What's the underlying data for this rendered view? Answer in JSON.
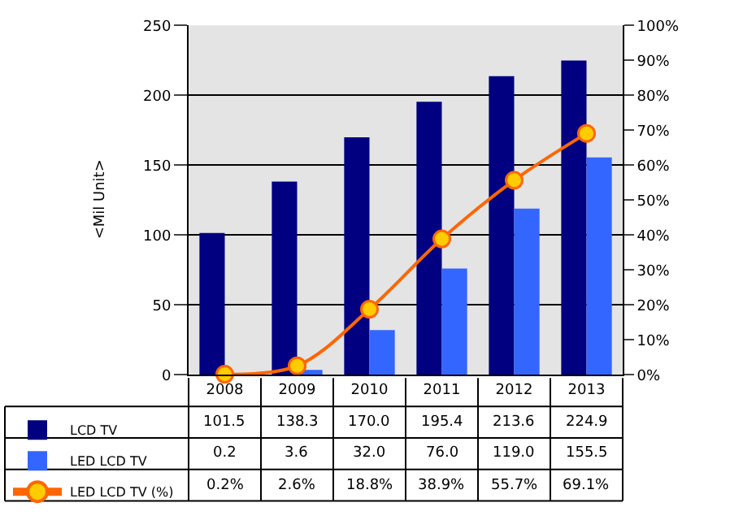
{
  "chart_data": {
    "type": "bar",
    "ylabel": "<Mil Unit>",
    "categories": [
      "2008",
      "2009",
      "2010",
      "2011",
      "2012",
      "2013"
    ],
    "series": [
      {
        "name": "LCD TV",
        "color": "#000080",
        "values": [
          101.5,
          138.3,
          170.0,
          195.4,
          213.6,
          224.9
        ],
        "value_labels": [
          "101.5",
          "138.3",
          "170.0",
          "195.4",
          "213.6",
          "224.9"
        ]
      },
      {
        "name": "LED LCD TV",
        "color": "#3366ff",
        "values": [
          0.2,
          3.6,
          32.0,
          76.0,
          119.0,
          155.5
        ],
        "value_labels": [
          "0.2",
          "3.6",
          "32.0",
          "76.0",
          "119.0",
          "155.5"
        ]
      },
      {
        "name": "LED LCD TV (%)",
        "type": "line",
        "axis": "y2",
        "color": "#ff6600",
        "marker": "circle",
        "values": [
          0.2,
          2.6,
          18.8,
          38.9,
          55.7,
          69.1
        ],
        "value_labels": [
          "0.2%",
          "2.6%",
          "18.8%",
          "38.9%",
          "55.7%",
          "69.1%"
        ]
      }
    ],
    "ylim": [
      0,
      250
    ],
    "yticks": [
      0,
      50,
      100,
      150,
      200,
      250
    ],
    "y2lim": [
      0,
      100
    ],
    "y2ticks": [
      {
        "value": 0,
        "label": "0%"
      },
      {
        "value": 10,
        "label": "10%"
      },
      {
        "value": 20,
        "label": "20%"
      },
      {
        "value": 30,
        "label": "30%"
      },
      {
        "value": 40,
        "label": "40%"
      },
      {
        "value": 50,
        "label": "50%"
      },
      {
        "value": 60,
        "label": "60%"
      },
      {
        "value": 70,
        "label": "70%"
      },
      {
        "value": 80,
        "label": "80%"
      },
      {
        "value": 90,
        "label": "90%"
      },
      {
        "value": 100,
        "label": "100%"
      }
    ],
    "grid": "y",
    "legend": "bottom left"
  }
}
